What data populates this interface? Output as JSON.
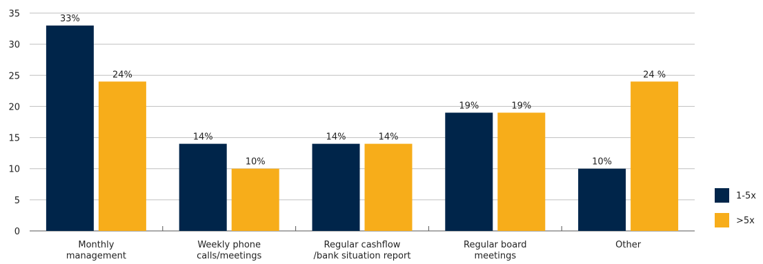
{
  "chart_data": {
    "type": "bar",
    "title": "",
    "xlabel": "",
    "ylabel": "",
    "ylim": [
      0,
      35
    ],
    "yticks": [
      0,
      5,
      10,
      15,
      20,
      25,
      30,
      35
    ],
    "grid": true,
    "legend_position": "right",
    "categories": [
      [
        "Monthly",
        "management"
      ],
      [
        "Weekly phone",
        "calls/meetings"
      ],
      [
        "Regular cashflow",
        "/bank situation report"
      ],
      [
        "Regular board",
        "meetings"
      ],
      [
        "Other"
      ]
    ],
    "series": [
      {
        "name": "1-5x",
        "color": "#00254a",
        "values": [
          33,
          14,
          14,
          19,
          10
        ],
        "labels": [
          "33%",
          "14%",
          "14%",
          "19%",
          "10%"
        ]
      },
      {
        "name": ">5x",
        "color": "#f7ad1a",
        "values": [
          24,
          10,
          14,
          19,
          24
        ],
        "labels": [
          "24%",
          "10%",
          "14%",
          "19%",
          "24 %"
        ]
      }
    ]
  }
}
